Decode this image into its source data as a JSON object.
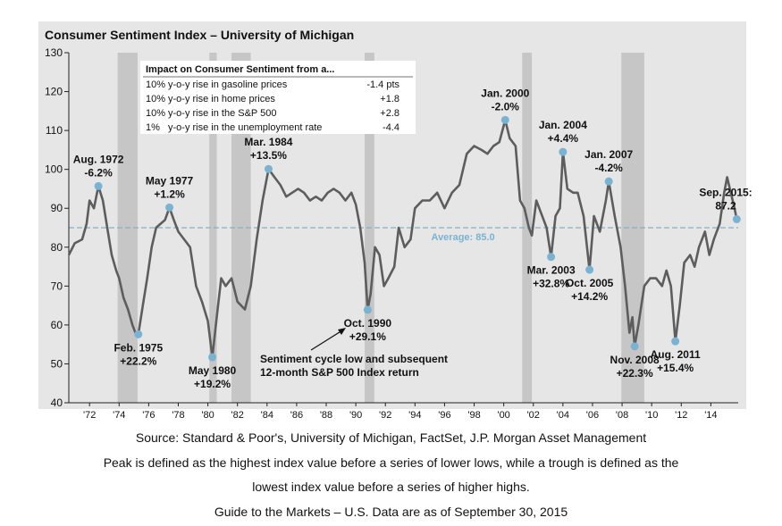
{
  "chart_data": {
    "type": "line",
    "title": "Consumer Sentiment Index – University of Michigan",
    "xlabel": "",
    "ylabel": "",
    "xlim": [
      1970.6,
      2015.85
    ],
    "ylim": [
      40,
      130
    ],
    "y_ticks": [
      40,
      50,
      60,
      70,
      80,
      90,
      100,
      110,
      120,
      130
    ],
    "x_ticks": [
      {
        "year": 1972,
        "label": "'72"
      },
      {
        "year": 1974,
        "label": "'74"
      },
      {
        "year": 1976,
        "label": "'76"
      },
      {
        "year": 1978,
        "label": "'78"
      },
      {
        "year": 1980,
        "label": "'80"
      },
      {
        "year": 1982,
        "label": "'82"
      },
      {
        "year": 1984,
        "label": "'84"
      },
      {
        "year": 1986,
        "label": "'86"
      },
      {
        "year": 1988,
        "label": "'88"
      },
      {
        "year": 1990,
        "label": "'90"
      },
      {
        "year": 1992,
        "label": "'92"
      },
      {
        "year": 1994,
        "label": "'94"
      },
      {
        "year": 1996,
        "label": "'96"
      },
      {
        "year": 1998,
        "label": "'98"
      },
      {
        "year": 2000,
        "label": "'00"
      },
      {
        "year": 2002,
        "label": "'02"
      },
      {
        "year": 2004,
        "label": "'04"
      },
      {
        "year": 2006,
        "label": "'06"
      },
      {
        "year": 2008,
        "label": "'08"
      },
      {
        "year": 2010,
        "label": "'10"
      },
      {
        "year": 2012,
        "label": "'12"
      },
      {
        "year": 2014,
        "label": "'14"
      }
    ],
    "recessions": [
      [
        1973.9,
        1975.25
      ],
      [
        1980.1,
        1980.6
      ],
      [
        1981.6,
        1982.9
      ],
      [
        1990.6,
        1991.25
      ],
      [
        2001.25,
        2001.9
      ],
      [
        2007.95,
        2009.5
      ]
    ],
    "average": {
      "value": 85.0,
      "label": "Average: 85.0"
    },
    "series": [
      {
        "name": "Consumer Sentiment Index",
        "points": [
          [
            1970.6,
            78
          ],
          [
            1971.0,
            81
          ],
          [
            1971.5,
            82
          ],
          [
            1971.8,
            86
          ],
          [
            1972.0,
            92
          ],
          [
            1972.3,
            90
          ],
          [
            1972.6,
            95.7
          ],
          [
            1972.9,
            92
          ],
          [
            1973.2,
            85
          ],
          [
            1973.5,
            78
          ],
          [
            1973.8,
            74
          ],
          [
            1974.0,
            72
          ],
          [
            1974.3,
            67
          ],
          [
            1974.6,
            64
          ],
          [
            1974.9,
            60
          ],
          [
            1975.1,
            58
          ],
          [
            1975.3,
            57.6
          ],
          [
            1975.6,
            65
          ],
          [
            1975.9,
            72
          ],
          [
            1976.2,
            80
          ],
          [
            1976.5,
            85
          ],
          [
            1976.8,
            86
          ],
          [
            1977.1,
            87
          ],
          [
            1977.4,
            90.2
          ],
          [
            1977.7,
            87
          ],
          [
            1978.0,
            84
          ],
          [
            1978.4,
            82
          ],
          [
            1978.8,
            80
          ],
          [
            1979.2,
            70
          ],
          [
            1979.6,
            66
          ],
          [
            1980.0,
            61
          ],
          [
            1980.3,
            51.7
          ],
          [
            1980.6,
            62
          ],
          [
            1980.9,
            72
          ],
          [
            1981.2,
            70
          ],
          [
            1981.6,
            72
          ],
          [
            1982.0,
            66
          ],
          [
            1982.5,
            64
          ],
          [
            1982.9,
            70
          ],
          [
            1983.3,
            82
          ],
          [
            1983.7,
            92
          ],
          [
            1984.1,
            100.1
          ],
          [
            1984.5,
            98
          ],
          [
            1984.9,
            96
          ],
          [
            1985.3,
            93
          ],
          [
            1985.7,
            94
          ],
          [
            1986.1,
            95
          ],
          [
            1986.5,
            94
          ],
          [
            1986.9,
            92
          ],
          [
            1987.3,
            93
          ],
          [
            1987.7,
            92
          ],
          [
            1988.1,
            94
          ],
          [
            1988.5,
            95
          ],
          [
            1988.9,
            94
          ],
          [
            1989.3,
            92
          ],
          [
            1989.7,
            94
          ],
          [
            1990.0,
            91
          ],
          [
            1990.3,
            85
          ],
          [
            1990.6,
            76
          ],
          [
            1990.8,
            63.9
          ],
          [
            1991.0,
            68
          ],
          [
            1991.3,
            80
          ],
          [
            1991.6,
            78
          ],
          [
            1991.9,
            70
          ],
          [
            1992.2,
            72
          ],
          [
            1992.6,
            75
          ],
          [
            1992.9,
            85
          ],
          [
            1993.3,
            80
          ],
          [
            1993.7,
            82
          ],
          [
            1994.0,
            90
          ],
          [
            1994.5,
            92
          ],
          [
            1995.0,
            92
          ],
          [
            1995.5,
            94
          ],
          [
            1996.0,
            90
          ],
          [
            1996.5,
            94
          ],
          [
            1997.0,
            96
          ],
          [
            1997.5,
            104
          ],
          [
            1998.0,
            106
          ],
          [
            1998.5,
            105
          ],
          [
            1998.9,
            104
          ],
          [
            1999.3,
            106
          ],
          [
            1999.7,
            107
          ],
          [
            2000.1,
            112.7
          ],
          [
            2000.4,
            108
          ],
          [
            2000.8,
            106
          ],
          [
            2001.1,
            92
          ],
          [
            2001.4,
            90
          ],
          [
            2001.7,
            85
          ],
          [
            2001.9,
            83
          ],
          [
            2002.2,
            92
          ],
          [
            2002.6,
            88
          ],
          [
            2002.9,
            85
          ],
          [
            2003.2,
            77.5
          ],
          [
            2003.5,
            88
          ],
          [
            2003.8,
            90
          ],
          [
            2004.0,
            104.5
          ],
          [
            2004.3,
            95
          ],
          [
            2004.7,
            94
          ],
          [
            2005.0,
            94
          ],
          [
            2005.4,
            88
          ],
          [
            2005.8,
            74.2
          ],
          [
            2006.1,
            88
          ],
          [
            2006.5,
            84
          ],
          [
            2006.9,
            92
          ],
          [
            2007.1,
            96.9
          ],
          [
            2007.5,
            88
          ],
          [
            2007.9,
            80
          ],
          [
            2008.2,
            70
          ],
          [
            2008.5,
            58
          ],
          [
            2008.7,
            62
          ],
          [
            2008.85,
            54.5
          ],
          [
            2009.1,
            60
          ],
          [
            2009.5,
            70
          ],
          [
            2009.9,
            72
          ],
          [
            2010.3,
            72
          ],
          [
            2010.7,
            70
          ],
          [
            2011.0,
            74
          ],
          [
            2011.3,
            70
          ],
          [
            2011.6,
            55.8
          ],
          [
            2011.9,
            65
          ],
          [
            2012.2,
            76
          ],
          [
            2012.6,
            78
          ],
          [
            2012.9,
            75
          ],
          [
            2013.2,
            80
          ],
          [
            2013.6,
            84
          ],
          [
            2013.9,
            78
          ],
          [
            2014.2,
            82
          ],
          [
            2014.6,
            86
          ],
          [
            2014.9,
            94
          ],
          [
            2015.1,
            98
          ],
          [
            2015.35,
            94
          ],
          [
            2015.6,
            90
          ],
          [
            2015.75,
            87.2
          ]
        ]
      }
    ],
    "markers": [
      {
        "x": 1972.6,
        "y": 95.7,
        "label1": "Aug. 1972",
        "label2": "-6.2%",
        "pos": "above"
      },
      {
        "x": 1975.3,
        "y": 57.6,
        "label1": "Feb. 1975",
        "label2": "+22.2%",
        "pos": "below"
      },
      {
        "x": 1977.4,
        "y": 90.2,
        "label1": "May 1977",
        "label2": "+1.2%",
        "pos": "above"
      },
      {
        "x": 1980.3,
        "y": 51.7,
        "label1": "May 1980",
        "label2": "+19.2%",
        "pos": "below"
      },
      {
        "x": 1984.1,
        "y": 100.1,
        "label1": "Mar. 1984",
        "label2": "+13.5%",
        "pos": "above"
      },
      {
        "x": 1990.8,
        "y": 63.9,
        "label1": "Oct. 1990",
        "label2": "+29.1%",
        "pos": "below"
      },
      {
        "x": 2000.1,
        "y": 112.7,
        "label1": "Jan. 2000",
        "label2": "-2.0%",
        "pos": "above"
      },
      {
        "x": 2003.2,
        "y": 77.5,
        "label1": "Mar. 2003",
        "label2": "+32.8%",
        "pos": "below"
      },
      {
        "x": 2004.0,
        "y": 104.5,
        "label1": "Jan. 2004",
        "label2": "+4.4%",
        "pos": "above"
      },
      {
        "x": 2005.8,
        "y": 74.2,
        "label1": "Oct. 2005",
        "label2": "+14.2%",
        "pos": "below"
      },
      {
        "x": 2007.1,
        "y": 96.9,
        "label1": "Jan. 2007",
        "label2": "-4.2%",
        "pos": "above"
      },
      {
        "x": 2008.85,
        "y": 54.5,
        "label1": "Nov. 2008",
        "label2": "+22.3%",
        "pos": "below"
      },
      {
        "x": 2011.6,
        "y": 55.8,
        "label1": "Aug. 2011",
        "label2": "+15.4%",
        "pos": "below"
      },
      {
        "x": 2015.75,
        "y": 87.2,
        "label1": "Sep. 2015:",
        "label2": "87.2",
        "pos": "above"
      }
    ],
    "annotation": {
      "line1": "Sentiment cycle low and subsequent",
      "line2": "12-month S&P 500 Index return",
      "arrow_target": {
        "x": 1990.45,
        "y": 60
      }
    },
    "inset_table": {
      "title": "Impact on Consumer Sentiment from a...",
      "rows": [
        {
          "pre": "10%",
          "text": "y-o-y rise in gasoline prices",
          "value": "-1.4 pts"
        },
        {
          "pre": "10%",
          "text": "y-o-y rise in home prices",
          "value": "+1.8"
        },
        {
          "pre": "10%",
          "text": "y-o-y rise in the S&P 500",
          "value": "+2.8"
        },
        {
          "pre": "1%",
          "text": "y-o-y rise in the unemployment rate",
          "value": "-4.4"
        }
      ]
    }
  },
  "footer": {
    "source": "Source: Standard & Poor's, University of Michigan, FactSet, J.P. Morgan Asset Management",
    "note1": "Peak is defined as the highest index value before a series of lower lows, while a trough is defined as the",
    "note2": "lowest index value before a series of higher highs.",
    "guide": "Guide to the Markets – U.S. Data are as of September 30, 2015"
  },
  "colors": {
    "background": "#e6e6e6",
    "recession": "#c6c6c6",
    "line": "#5d5d5d",
    "marker": "#7ab3d1",
    "average": "#7ab3d1",
    "text": "#111111"
  }
}
